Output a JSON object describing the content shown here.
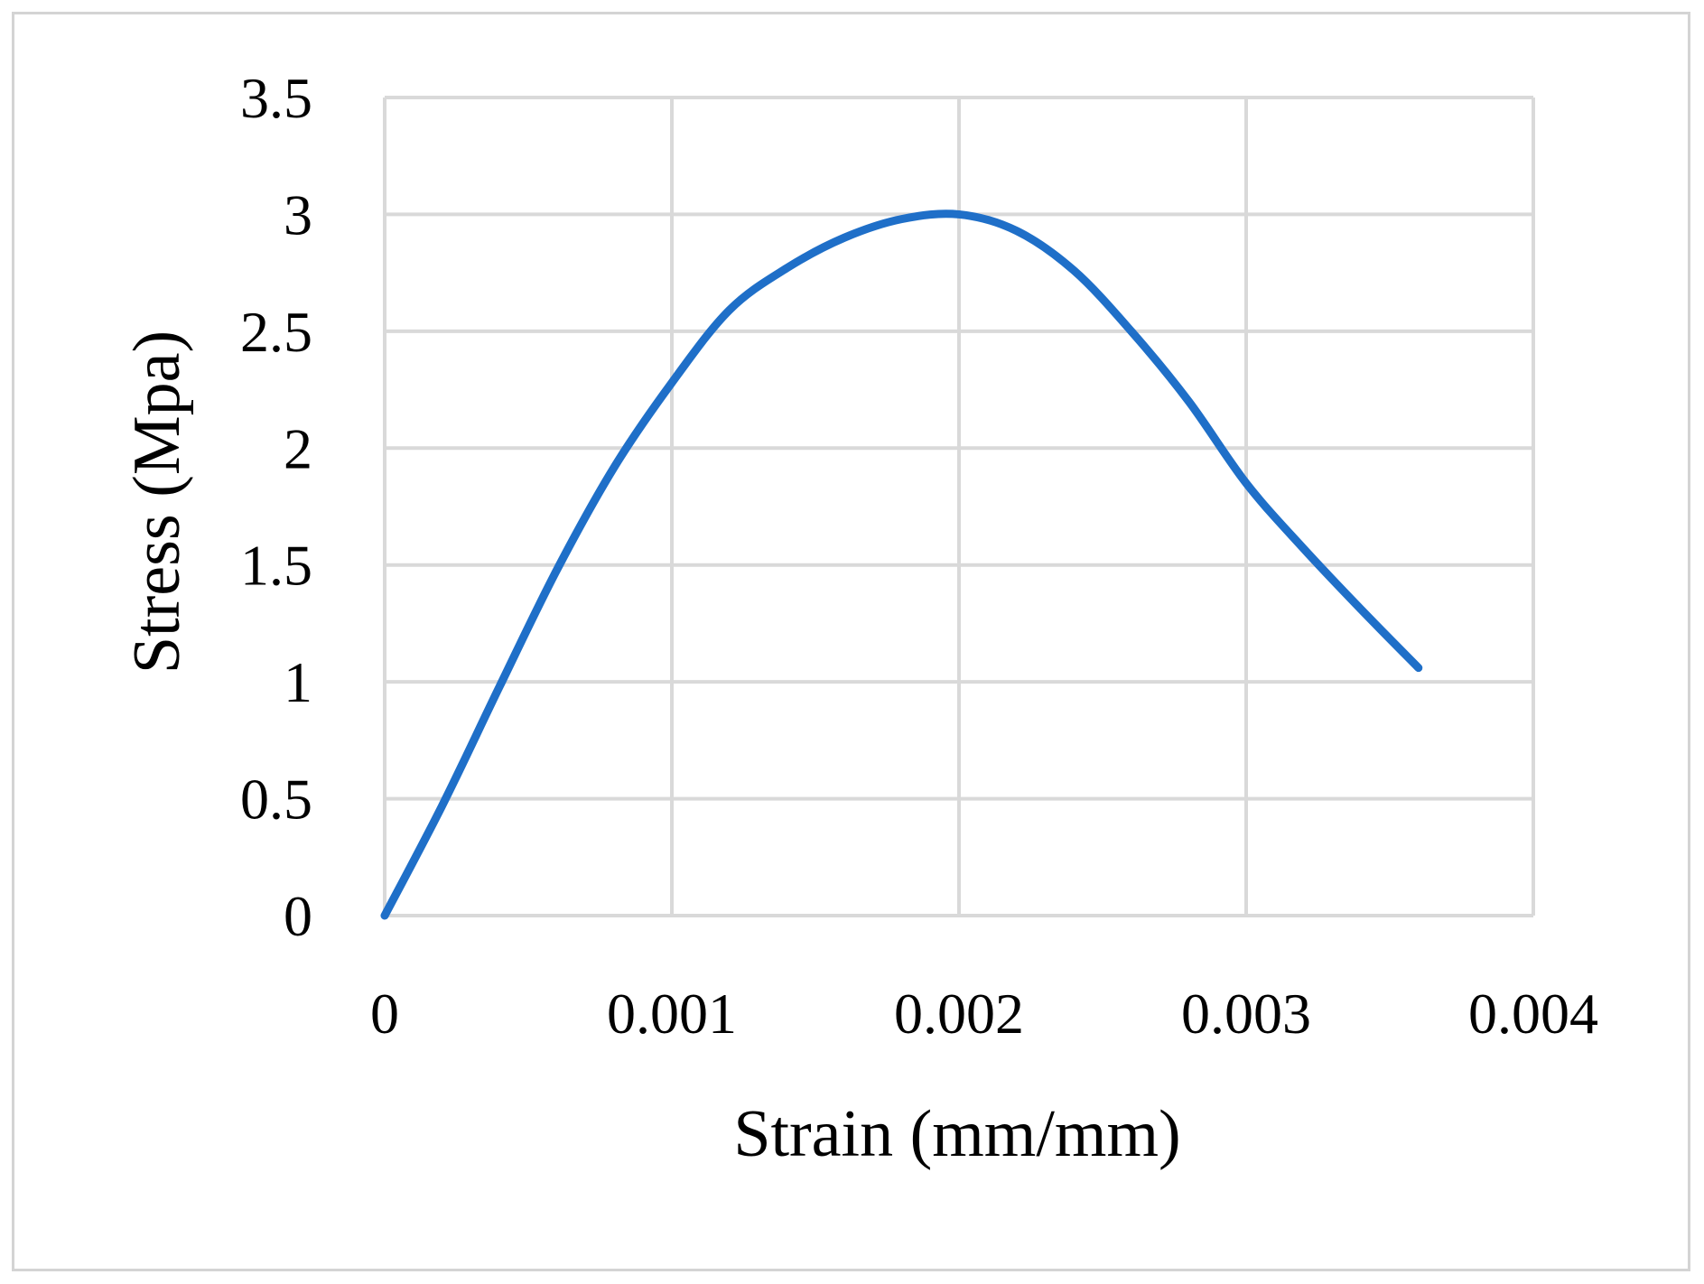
{
  "chart_data": {
    "type": "line",
    "title": "",
    "xlabel": "Strain (mm/mm)",
    "ylabel": "Stress (Mpa)",
    "xlim": [
      0,
      0.004
    ],
    "ylim": [
      0,
      3.5
    ],
    "x_ticks": [
      0,
      0.001,
      0.002,
      0.003,
      0.004
    ],
    "x_tick_labels": [
      "0",
      "0.001",
      "0.002",
      "0.003",
      "0.004"
    ],
    "y_ticks": [
      0,
      0.5,
      1,
      1.5,
      2,
      2.5,
      3,
      3.5
    ],
    "y_tick_labels": [
      "0",
      "0.5",
      "1",
      "1.5",
      "2",
      "2.5",
      "3",
      "3.5"
    ],
    "grid": true,
    "legend": "none",
    "series": [
      {
        "color": "#1f6fc8",
        "x": [
          0,
          0.0002,
          0.0004,
          0.0006,
          0.0008,
          0.001,
          0.0012,
          0.0014,
          0.0016,
          0.0018,
          0.002,
          0.0022,
          0.0024,
          0.0026,
          0.0028,
          0.003,
          0.0032,
          0.0034,
          0.0036
        ],
        "y": [
          0,
          0.47,
          0.98,
          1.48,
          1.92,
          2.28,
          2.59,
          2.77,
          2.9,
          2.98,
          3.0,
          2.93,
          2.76,
          2.5,
          2.2,
          1.85,
          1.57,
          1.31,
          1.06
        ]
      }
    ]
  }
}
